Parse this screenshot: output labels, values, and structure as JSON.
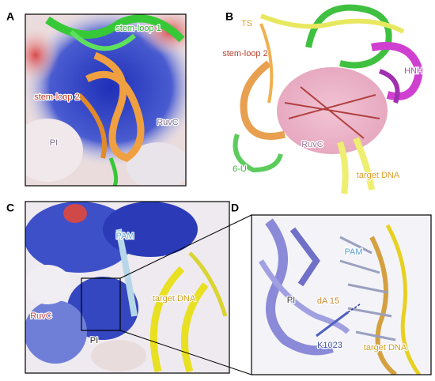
{
  "panels": [
    {
      "letter": "A",
      "labels": [
        "stem-loop 1",
        "stem-loop 2",
        "PI",
        "RuvC"
      ]
    },
    {
      "letter": "B",
      "labels": [
        "TS",
        "stem-loop 2",
        "HNH",
        "RuvC",
        "6-U",
        "target DNA"
      ]
    },
    {
      "letter": "C",
      "labels": [
        "PAM",
        "RuvC",
        "target DNA",
        "PI"
      ]
    },
    {
      "letter": "D",
      "labels": [
        "PI",
        "PAM",
        "dA 15",
        "K1023",
        "target DNA"
      ]
    }
  ]
}
